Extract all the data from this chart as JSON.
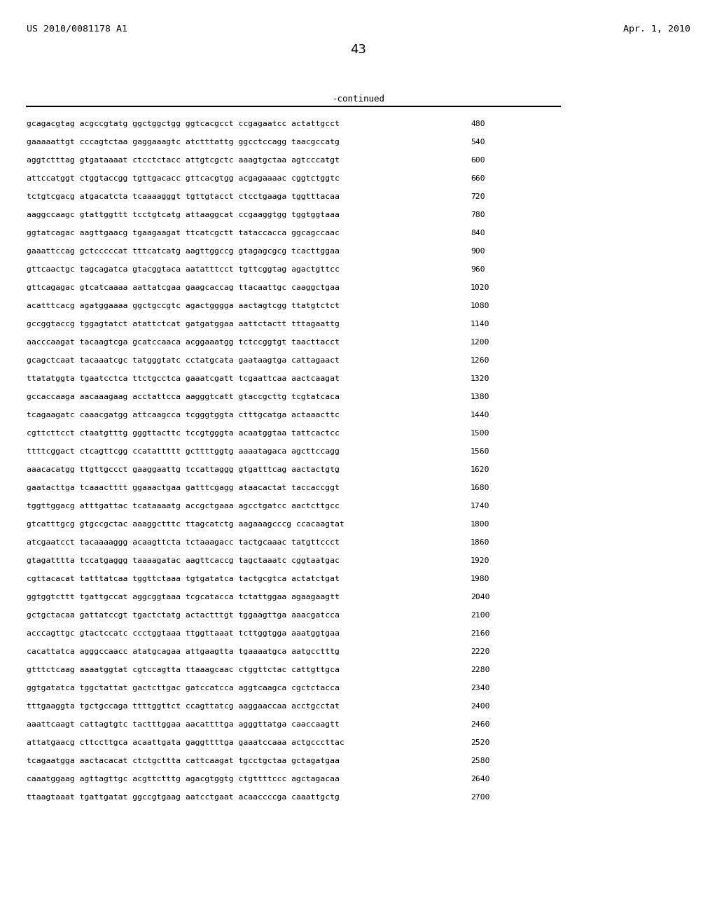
{
  "header_left": "US 2010/0081178 A1",
  "header_right": "Apr. 1, 2010",
  "page_number": "43",
  "continued_label": "-continued",
  "background_color": "#ffffff",
  "text_color": "#000000",
  "sequence_lines": [
    [
      "gcagacgtag acgccgtatg ggctggctgg ggtcacgcct ccgagaatcc actattgcct",
      "480"
    ],
    [
      "gaaaaattgt cccagtctaa gaggaaagtc atctttattg ggcctccagg taacgccatg",
      "540"
    ],
    [
      "aggtctttag gtgataaaat ctcctctacc attgtcgctc aaagtgctaa agtcccatgt",
      "600"
    ],
    [
      "attccatggt ctggtaccgg tgttgacacc gttcacgtgg acgagaaaac cggtctggtc",
      "660"
    ],
    [
      "tctgtcgacg atgacatcta tcaaaagggt tgttgtacct ctcctgaaga tggtttacaa",
      "720"
    ],
    [
      "aaggccaagc gtattggttt tcctgtcatg attaaggcat ccgaaggtgg tggtggtaaa",
      "780"
    ],
    [
      "ggtatcagac aagttgaacg tgaagaagat ttcatcgctt tataccacca ggcagccaac",
      "840"
    ],
    [
      "gaaattccag gctcccccat tttcatcatg aagttggccg gtagagcgcg tcacttggaa",
      "900"
    ],
    [
      "gttcaactgc tagcagatca gtacggtaca aatatttcct tgttcggtag agactgttcc",
      "960"
    ],
    [
      "gttcagagac gtcatcaaaa aattatcgaa gaagcaccag ttacaattgc caaggctgaa",
      "1020"
    ],
    [
      "acatttcacg agatggaaaa ggctgccgtc agactgggga aactagtcgg ttatgtctct",
      "1080"
    ],
    [
      "gccggtaccg tggagtatct atattctcat gatgatggaa aattctactt tttagaattg",
      "1140"
    ],
    [
      "aacccaagat tacaagtcga gcatccaaca acggaaatgg tctccggtgt taacttacct",
      "1200"
    ],
    [
      "gcagctcaat tacaaatcgc tatgggtatc cctatgcata gaataagtga cattagaact",
      "1260"
    ],
    [
      "ttatatggta tgaatcctca ttctgcctca gaaatcgatt tcgaattcaa aactcaagat",
      "1320"
    ],
    [
      "gccaccaaga aacaaagaag acctattcca aagggtcatt gtaccgcttg tcgtatcaca",
      "1380"
    ],
    [
      "tcagaagatc caaacgatgg attcaagcca tcgggtggta ctttgcatga actaaacttc",
      "1440"
    ],
    [
      "cgttcttcct ctaatgtttg gggttacttc tccgtgggta acaatggtaa tattcactcc",
      "1500"
    ],
    [
      "ttttcggact ctcagttcgg ccatattttt gcttttggtg aaaatagaca agcttccagg",
      "1560"
    ],
    [
      "aaacacatgg ttgttgccct gaaggaattg tccattaggg gtgatttcag aactactgtg",
      "1620"
    ],
    [
      "gaatacttga tcaaactttt ggaaactgaa gatttcgagg ataacactat taccaccggt",
      "1680"
    ],
    [
      "tggttggacg atttgattac tcataaaatg accgctgaaa agcctgatcc aactcttgcc",
      "1740"
    ],
    [
      "gtcatttgcg gtgccgctac aaaggctttc ttagcatctg aagaaagcccg ccacaagtat",
      "1800"
    ],
    [
      "atcgaatcct tacaaaaggg acaagttcta tctaaagacc tactgcaaac tatgttccct",
      "1860"
    ],
    [
      "gtagatttta tccatgaggg taaaagatac aagttcaccg tagctaaatc cggtaatgac",
      "1920"
    ],
    [
      "cgttacacat tatttatcaa tggttctaaa tgtgatatca tactgcgtca actatctgat",
      "1980"
    ],
    [
      "ggtggtcttt tgattgccat aggcggtaaa tcgcatacca tctattggaa agaagaagtt",
      "2040"
    ],
    [
      "gctgctacaa gattatccgt tgactctatg actactttgt tggaagttga aaacgatcca",
      "2100"
    ],
    [
      "acccagttgc gtactccatc ccctggtaaa ttggttaaat tcttggtgga aaatggtgaa",
      "2160"
    ],
    [
      "cacattatca agggccaacc atatgcagaa attgaagtta tgaaaatgca aatgcctttg",
      "2220"
    ],
    [
      "gtttctcaag aaaatggtat cgtccagtta ttaaagcaac ctggttctac cattgttgca",
      "2280"
    ],
    [
      "ggtgatatca tggctattat gactcttgac gatccatcca aggtcaagca cgctctacca",
      "2340"
    ],
    [
      "tttgaaggta tgctgccaga ttttggttct ccagttatcg aaggaaccaa acctgcctat",
      "2400"
    ],
    [
      "aaattcaagt cattagtgtc tactttggaa aacattttga agggttatga caaccaagtt",
      "2460"
    ],
    [
      "attatgaacg cttccttgca acaattgata gaggttttga gaaatccaaa actgcccttac",
      "2520"
    ],
    [
      "tcagaatgga aactacacat ctctgcttta cattcaagat tgcctgctaa gctagatgaa",
      "2580"
    ],
    [
      "caaatggaag agttagttgc acgttctttg agacgtggtg ctgttttccc agctagacaa",
      "2640"
    ],
    [
      "ttaagtaaat tgattgatat ggccgtgaag aatcctgaat acaaccccga caaattgctg",
      "2700"
    ]
  ]
}
